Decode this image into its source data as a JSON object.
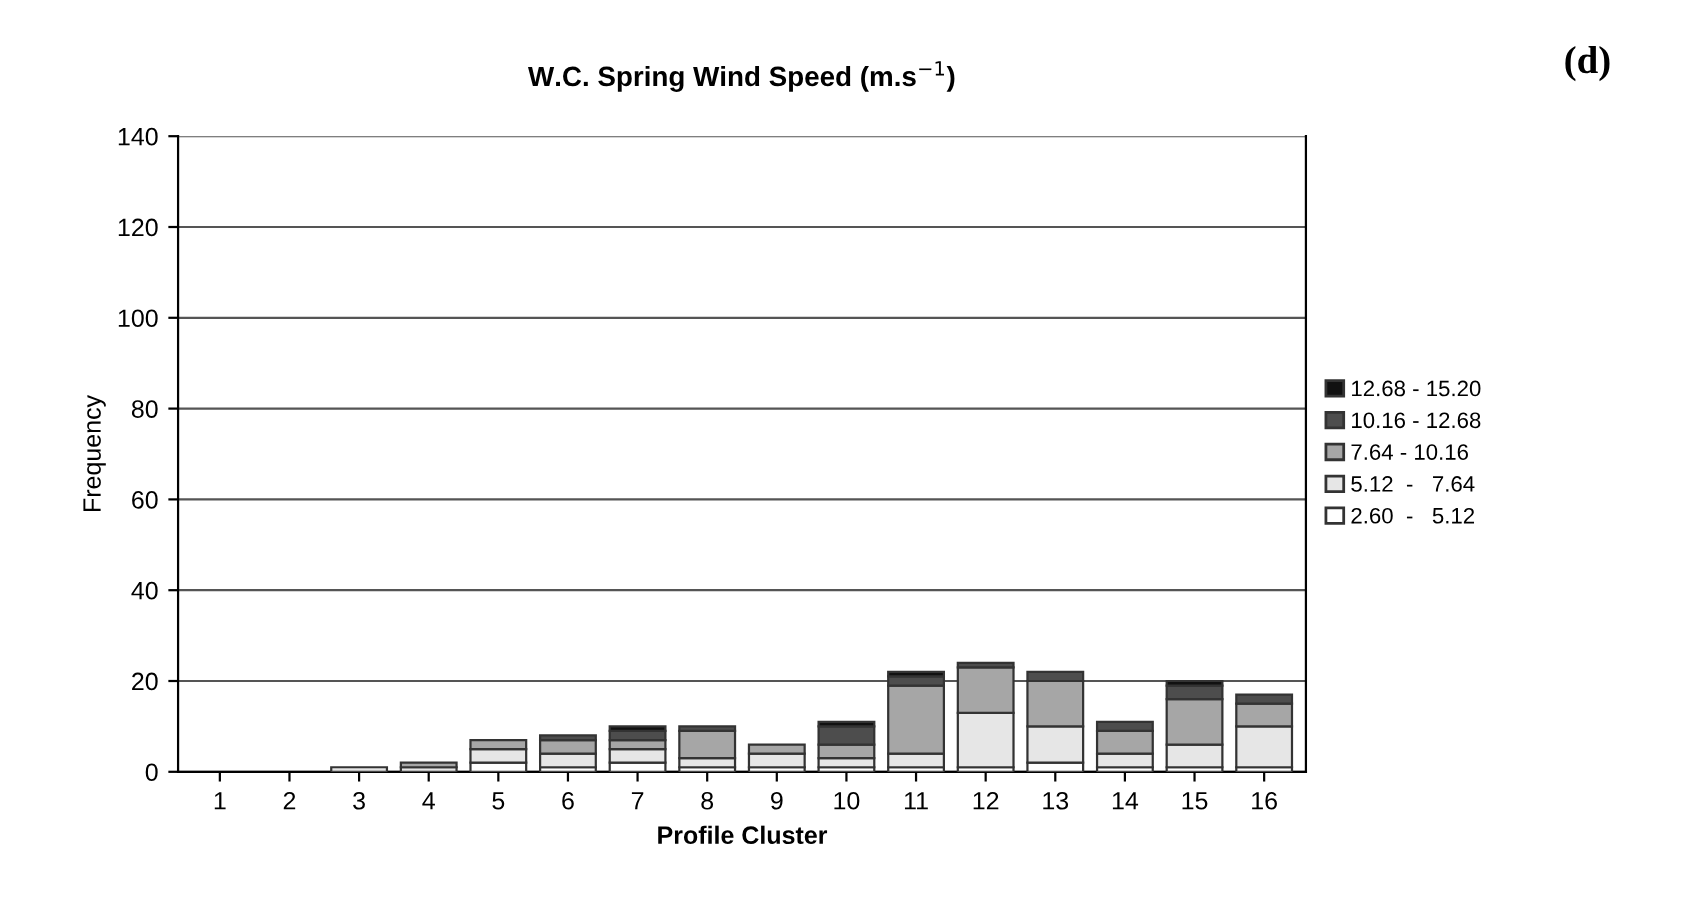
{
  "chart_data": {
    "type": "bar",
    "stacked": true,
    "title": "W.C. Spring Wind Speed (m.s$^{−1}$)",
    "xlabel": "Profile Cluster",
    "ylabel": "Frequency",
    "annotations": [
      "(d)"
    ],
    "categories": [
      "1",
      "2",
      "3",
      "4",
      "5",
      "6",
      "7",
      "8",
      "9",
      "10",
      "11",
      "12",
      "13",
      "14",
      "15",
      "16"
    ],
    "series": [
      {
        "name": "2.60  -   5.12",
        "color": "#ffffff",
        "values": [
          0,
          0,
          0,
          0,
          2,
          1,
          2,
          1,
          1,
          1,
          1,
          1,
          2,
          1,
          1,
          1
        ]
      },
      {
        "name": "5.12  -   7.64",
        "color": "#e6e6e6",
        "values": [
          0,
          0,
          1,
          1,
          3,
          3,
          3,
          2,
          3,
          2,
          3,
          12,
          8,
          3,
          5,
          9
        ]
      },
      {
        "name": "7.64 - 10.16",
        "color": "#a6a6a6",
        "values": [
          0,
          0,
          0,
          1,
          2,
          3,
          2,
          6,
          2,
          3,
          15,
          10,
          10,
          5,
          10,
          5
        ]
      },
      {
        "name": "10.16 - 12.68",
        "color": "#4d4d4d",
        "values": [
          0,
          0,
          0,
          0,
          0,
          1,
          2,
          1,
          0,
          4,
          2,
          1,
          2,
          2,
          3,
          2
        ]
      },
      {
        "name": "12.68 - 15.20",
        "color": "#111111",
        "values": [
          0,
          0,
          0,
          0,
          0,
          0,
          1,
          0,
          0,
          1,
          1,
          0,
          0,
          0,
          1,
          0
        ]
      }
    ],
    "ylim": [
      0,
      140
    ],
    "yticks": [
      0,
      20,
      40,
      60,
      80,
      100,
      120,
      140
    ],
    "grid": "y",
    "legend": "right"
  }
}
